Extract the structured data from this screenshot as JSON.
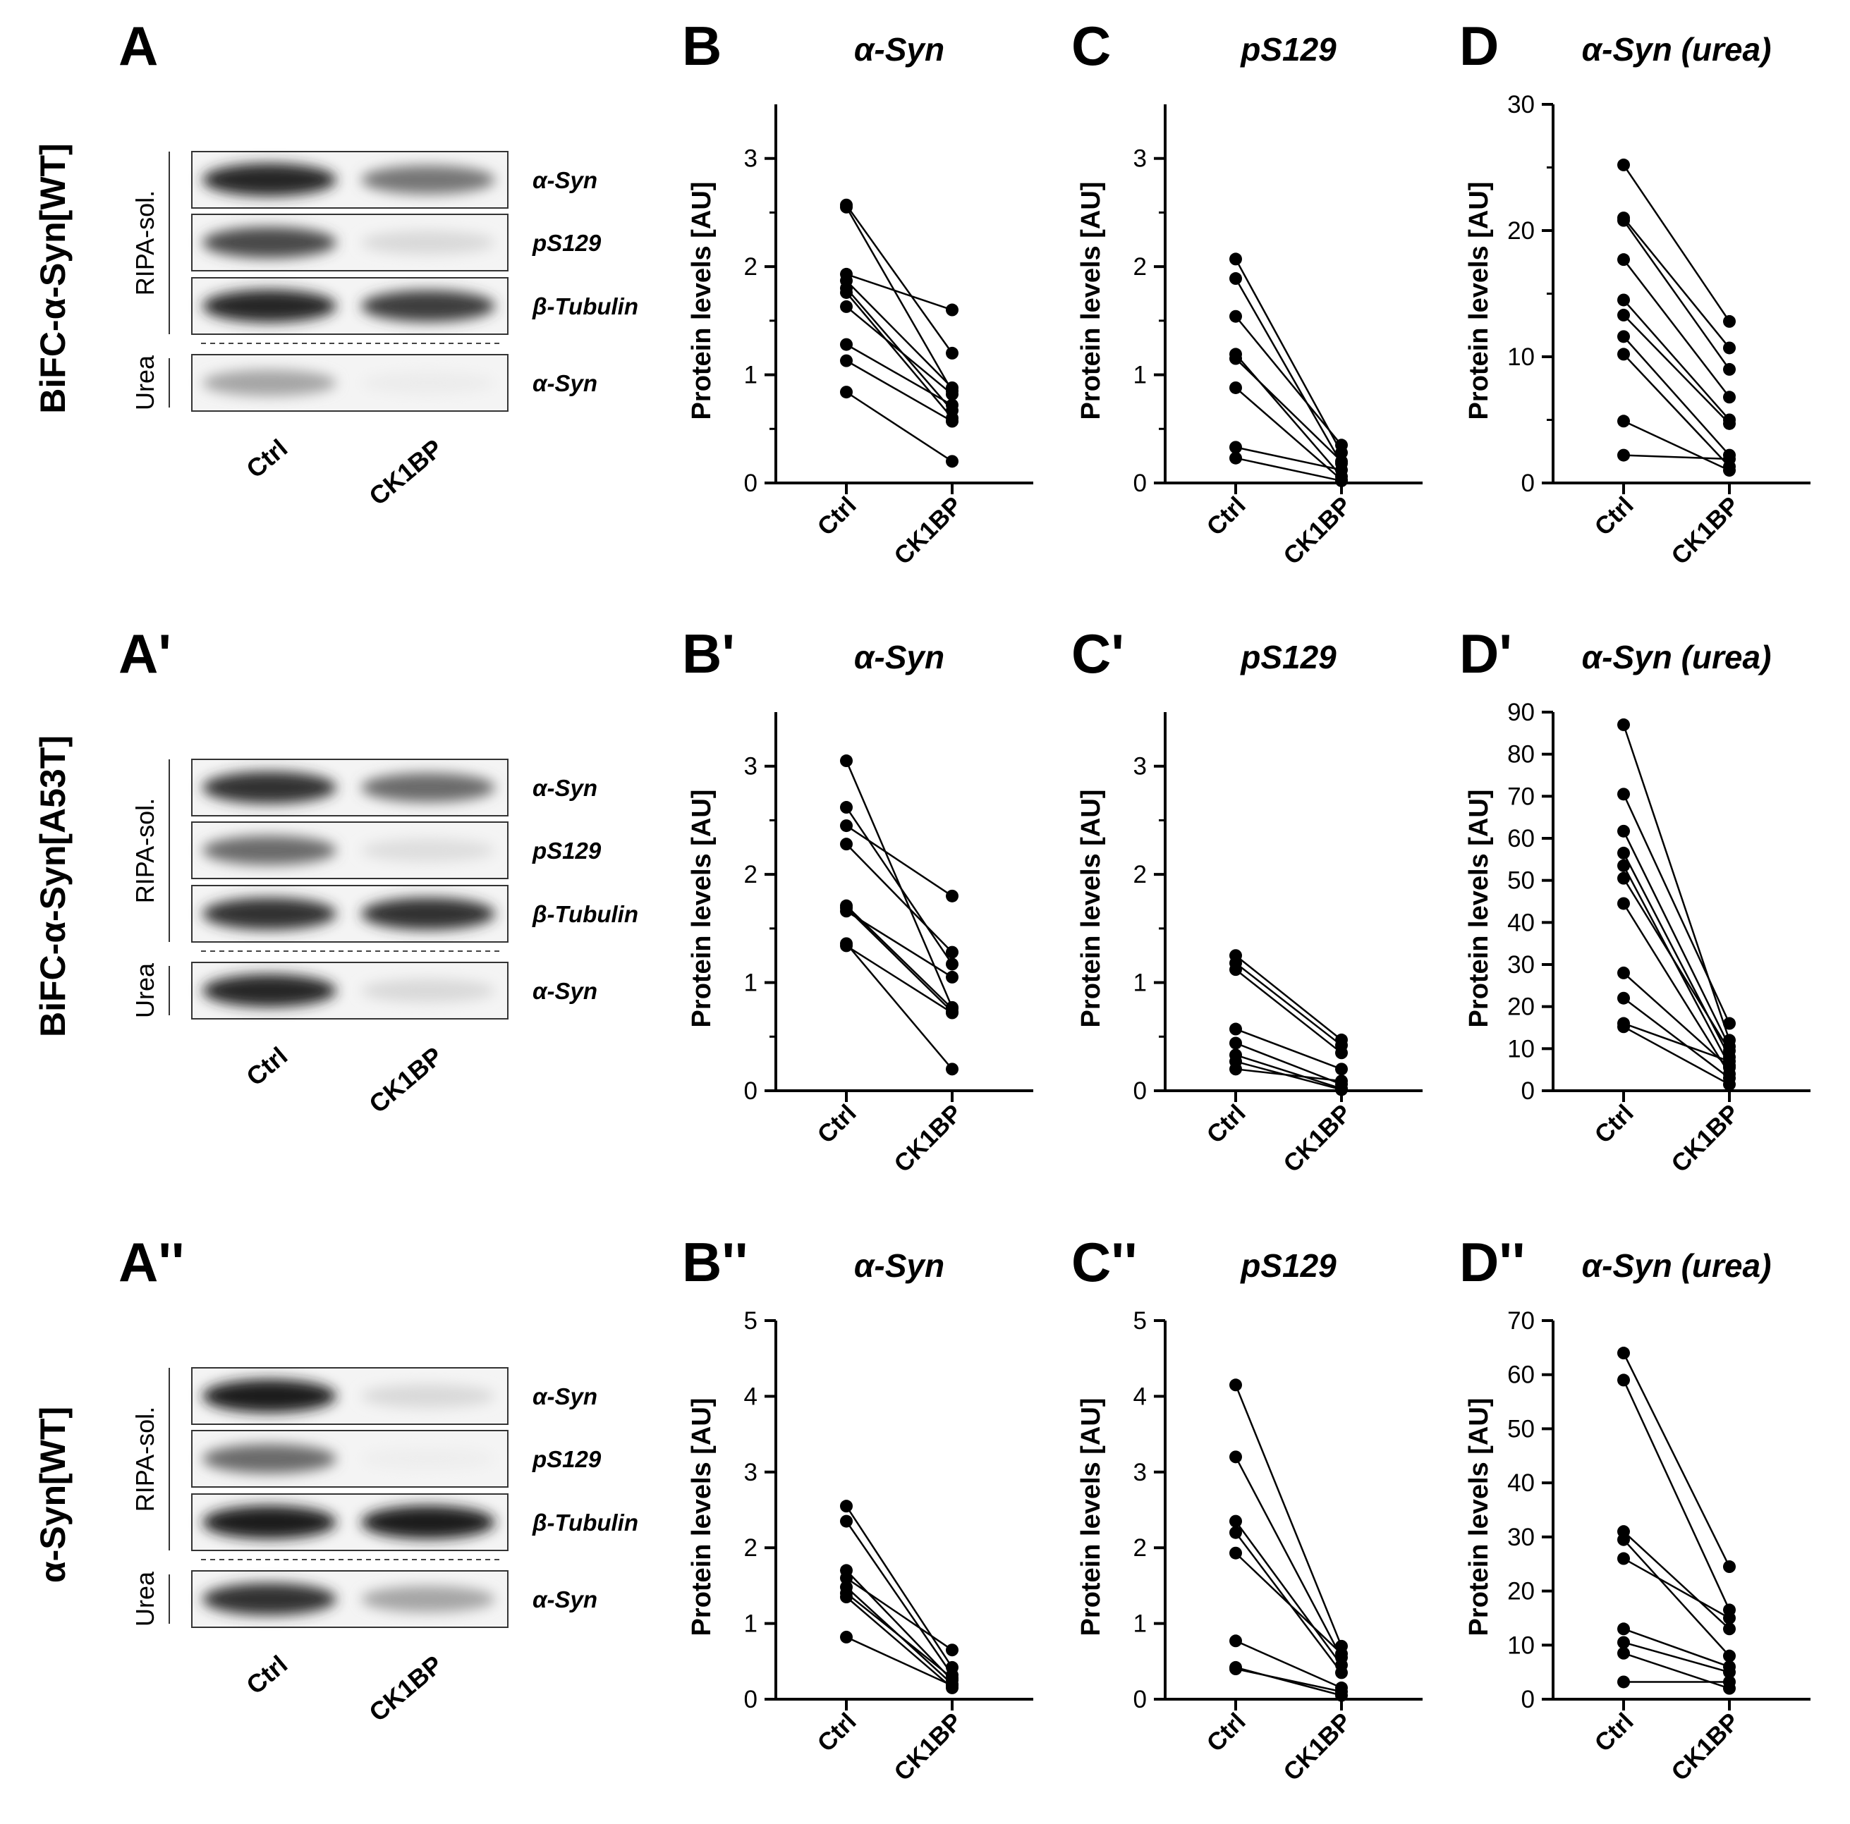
{
  "rows": [
    {
      "id": "wt",
      "row_label": "BiFC-α-Syn[WT]",
      "blot": {
        "panel": "A",
        "fraction_labels": [
          "RIPA-sol.",
          "Urea"
        ],
        "strips": [
          {
            "label": "α-Syn",
            "fraction": "RIPA-sol.",
            "ctrl_intensity": 0.9,
            "ck1bp_intensity": 0.55
          },
          {
            "label": "pS129",
            "fraction": "RIPA-sol.",
            "ctrl_intensity": 0.75,
            "ck1bp_intensity": 0.12
          },
          {
            "label": "β-Tubulin",
            "fraction": "RIPA-sol.",
            "ctrl_intensity": 0.9,
            "ck1bp_intensity": 0.8
          },
          {
            "label": "α-Syn",
            "fraction": "Urea",
            "ctrl_intensity": 0.35,
            "ck1bp_intensity": 0.04
          }
        ],
        "lanes": [
          "Ctrl",
          "CK1BP"
        ]
      }
    },
    {
      "id": "a53t",
      "row_label": "BiFC-α-Syn[A53T]",
      "blot": {
        "panel": "A'",
        "fraction_labels": [
          "RIPA-sol.",
          "Urea"
        ],
        "strips": [
          {
            "label": "α-Syn",
            "fraction": "RIPA-sol.",
            "ctrl_intensity": 0.85,
            "ck1bp_intensity": 0.6
          },
          {
            "label": "pS129",
            "fraction": "RIPA-sol.",
            "ctrl_intensity": 0.6,
            "ck1bp_intensity": 0.1
          },
          {
            "label": "β-Tubulin",
            "fraction": "RIPA-sol.",
            "ctrl_intensity": 0.85,
            "ck1bp_intensity": 0.85
          },
          {
            "label": "α-Syn",
            "fraction": "Urea",
            "ctrl_intensity": 0.9,
            "ck1bp_intensity": 0.12
          }
        ],
        "lanes": [
          "Ctrl",
          "CK1BP"
        ]
      }
    },
    {
      "id": "syn_wt",
      "row_label": "α-Syn[WT]",
      "blot": {
        "panel": "A''",
        "fraction_labels": [
          "RIPA-sol.",
          "Urea"
        ],
        "strips": [
          {
            "label": "α-Syn",
            "fraction": "RIPA-sol.",
            "ctrl_intensity": 0.95,
            "ck1bp_intensity": 0.12
          },
          {
            "label": "pS129",
            "fraction": "RIPA-sol.",
            "ctrl_intensity": 0.6,
            "ck1bp_intensity": 0.03
          },
          {
            "label": "β-Tubulin",
            "fraction": "RIPA-sol.",
            "ctrl_intensity": 0.95,
            "ck1bp_intensity": 0.95
          },
          {
            "label": "α-Syn",
            "fraction": "Urea",
            "ctrl_intensity": 0.85,
            "ck1bp_intensity": 0.35
          }
        ],
        "lanes": [
          "Ctrl",
          "CK1BP"
        ]
      }
    }
  ],
  "chart_data": [
    {
      "panel": "B",
      "type": "scatter",
      "title": "α-Syn",
      "ylabel": "Protein levels [AU]",
      "categories": [
        "Ctrl",
        "CK1BP"
      ],
      "ylim": [
        0,
        3.5
      ],
      "yticks": [
        0,
        1,
        2,
        3
      ],
      "minor_ticks": [
        0.5,
        1.5,
        2.5
      ],
      "pairs": [
        [
          2.57,
          1.2
        ],
        [
          2.55,
          0.85
        ],
        [
          1.93,
          1.6
        ],
        [
          1.87,
          0.88
        ],
        [
          1.8,
          0.67
        ],
        [
          1.76,
          0.6
        ],
        [
          1.63,
          0.82
        ],
        [
          1.28,
          0.72
        ],
        [
          1.13,
          0.57
        ],
        [
          0.84,
          0.2
        ]
      ]
    },
    {
      "panel": "C",
      "type": "scatter",
      "title": "pS129",
      "ylabel": "Protein levels [AU]",
      "categories": [
        "Ctrl",
        "CK1BP"
      ],
      "ylim": [
        0,
        3.5
      ],
      "yticks": [
        0,
        1,
        2,
        3
      ],
      "minor_ticks": [
        0.5,
        1.5,
        2.5
      ],
      "pairs": [
        [
          2.07,
          0.28
        ],
        [
          1.89,
          0.18
        ],
        [
          1.54,
          0.35
        ],
        [
          1.19,
          0.06
        ],
        [
          1.15,
          0.2
        ],
        [
          0.88,
          0.03
        ],
        [
          0.33,
          0.12
        ],
        [
          0.23,
          0.02
        ]
      ]
    },
    {
      "panel": "D",
      "type": "scatter",
      "title": "α-Syn (urea)",
      "ylabel": "Protein levels [AU]",
      "categories": [
        "Ctrl",
        "CK1BP"
      ],
      "ylim": [
        0,
        30
      ],
      "yticks": [
        0,
        10,
        20,
        30
      ],
      "minor_ticks": [
        5,
        15,
        25
      ],
      "pairs": [
        [
          25.2,
          12.8
        ],
        [
          21.0,
          10.7
        ],
        [
          20.8,
          9.0
        ],
        [
          17.7,
          6.8
        ],
        [
          14.5,
          5.0
        ],
        [
          13.3,
          4.7
        ],
        [
          11.6,
          2.2
        ],
        [
          10.2,
          1.3
        ],
        [
          4.9,
          1.0
        ],
        [
          2.2,
          1.9
        ]
      ]
    },
    {
      "panel": "B'",
      "type": "scatter",
      "title": "α-Syn",
      "ylabel": "Protein levels [AU]",
      "categories": [
        "Ctrl",
        "CK1BP"
      ],
      "ylim": [
        0,
        3.5
      ],
      "yticks": [
        0,
        1,
        2,
        3
      ],
      "minor_ticks": [
        0.5,
        1.5,
        2.5
      ],
      "pairs": [
        [
          3.05,
          0.77
        ],
        [
          2.62,
          1.17
        ],
        [
          2.45,
          1.8
        ],
        [
          2.28,
          1.28
        ],
        [
          1.71,
          0.76
        ],
        [
          1.69,
          0.73
        ],
        [
          1.66,
          1.05
        ],
        [
          1.36,
          0.2
        ],
        [
          1.34,
          0.72
        ]
      ]
    },
    {
      "panel": "C'",
      "type": "scatter",
      "title": "pS129",
      "ylabel": "Protein levels [AU]",
      "categories": [
        "Ctrl",
        "CK1BP"
      ],
      "ylim": [
        0,
        3.5
      ],
      "yticks": [
        0,
        1,
        2,
        3
      ],
      "minor_ticks": [
        0.5,
        1.5,
        2.5
      ],
      "pairs": [
        [
          1.25,
          0.47
        ],
        [
          1.18,
          0.42
        ],
        [
          1.12,
          0.35
        ],
        [
          0.57,
          0.2
        ],
        [
          0.44,
          0.06
        ],
        [
          0.33,
          0.02
        ],
        [
          0.27,
          0.01
        ],
        [
          0.2,
          0.09
        ]
      ]
    },
    {
      "panel": "D'",
      "type": "scatter",
      "title": "α-Syn (urea)",
      "ylabel": "Protein levels [AU]",
      "categories": [
        "Ctrl",
        "CK1BP"
      ],
      "ylim": [
        0,
        90
      ],
      "yticks": [
        0,
        10,
        20,
        30,
        40,
        50,
        60,
        70,
        80,
        90
      ],
      "minor_ticks": [],
      "pairs": [
        [
          87,
          12
        ],
        [
          70.5,
          16
        ],
        [
          61.7,
          10.5
        ],
        [
          56.5,
          8
        ],
        [
          53.5,
          6
        ],
        [
          50.5,
          9.5
        ],
        [
          44.5,
          4
        ],
        [
          28,
          5.5
        ],
        [
          22,
          3
        ],
        [
          16,
          7
        ],
        [
          15.2,
          1.5
        ]
      ]
    },
    {
      "panel": "B''",
      "type": "scatter",
      "title": "α-Syn",
      "ylabel": "Protein levels [AU]",
      "categories": [
        "Ctrl",
        "CK1BP"
      ],
      "ylim": [
        0,
        5
      ],
      "yticks": [
        0,
        1,
        2,
        3,
        4,
        5
      ],
      "minor_ticks": [],
      "pairs": [
        [
          2.55,
          0.42
        ],
        [
          2.35,
          0.32
        ],
        [
          1.7,
          0.25
        ],
        [
          1.6,
          0.65
        ],
        [
          1.48,
          0.2
        ],
        [
          1.4,
          0.28
        ],
        [
          1.35,
          0.15
        ],
        [
          0.82,
          0.18
        ]
      ]
    },
    {
      "panel": "C''",
      "type": "scatter",
      "title": "pS129",
      "ylabel": "Protein levels [AU]",
      "categories": [
        "Ctrl",
        "CK1BP"
      ],
      "ylim": [
        0,
        5
      ],
      "yticks": [
        0,
        1,
        2,
        3,
        4,
        5
      ],
      "minor_ticks": [],
      "pairs": [
        [
          4.15,
          0.7
        ],
        [
          3.2,
          0.55
        ],
        [
          2.35,
          0.45
        ],
        [
          2.2,
          0.35
        ],
        [
          1.93,
          0.6
        ],
        [
          0.77,
          0.15
        ],
        [
          0.42,
          0.05
        ],
        [
          0.4,
          0.1
        ]
      ]
    },
    {
      "panel": "D''",
      "type": "scatter",
      "title": "α-Syn (urea)",
      "ylabel": "Protein levels [AU]",
      "categories": [
        "Ctrl",
        "CK1BP"
      ],
      "ylim": [
        0,
        70
      ],
      "yticks": [
        0,
        10,
        20,
        30,
        40,
        50,
        60,
        70
      ],
      "minor_ticks": [],
      "pairs": [
        [
          64,
          24.5
        ],
        [
          59,
          16.5
        ],
        [
          31,
          13
        ],
        [
          29.5,
          8
        ],
        [
          26,
          15
        ],
        [
          13,
          6
        ],
        [
          10.5,
          5
        ],
        [
          8.5,
          2
        ],
        [
          3.2,
          3.2
        ]
      ]
    }
  ]
}
